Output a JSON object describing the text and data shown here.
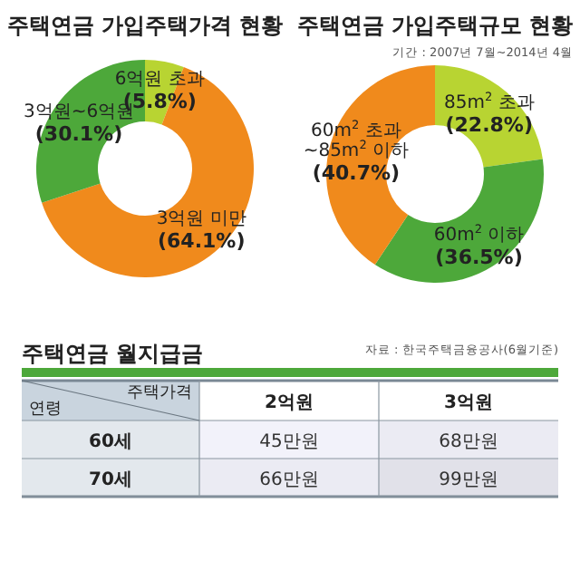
{
  "chart_data": [
    {
      "type": "donut",
      "title": "주택연금 가입주택가격 현황",
      "categories": [
        "6억원 초과",
        "3억원 미만",
        "3억원~6억원"
      ],
      "values": [
        5.8,
        64.1,
        30.1
      ],
      "colors": [
        "#b8d432",
        "#f08a1c",
        "#4da83a"
      ],
      "value_labels": [
        "(5.8%)",
        "(64.1%)",
        "(30.1%)"
      ]
    },
    {
      "type": "donut",
      "title": "주택연금 가입주택규모 현황",
      "subtitle": "기간 : 2007년 7월~2014년 4월",
      "categories": [
        "85m$^{2}$ 초과",
        "60m$^{2}$ 이하",
        "60m$^{2}$ 초과 ~85m$^{2}$ 이하"
      ],
      "values": [
        22.8,
        36.5,
        40.7
      ],
      "colors": [
        "#b8d432",
        "#4da83a",
        "#f08a1c"
      ],
      "value_labels": [
        "(22.8%)",
        "(36.5%)",
        "(40.7%)"
      ]
    },
    {
      "type": "heatmap",
      "title": "주택연금 월지급금",
      "xlabel": "주택가격",
      "ylabel": "연령",
      "categories": [
        "2억원",
        "3억원"
      ],
      "y_categories": [
        "60세",
        "70세"
      ],
      "cells": [
        [
          45,
          68
        ],
        [
          66,
          99
        ]
      ],
      "cell_labels": [
        [
          "45만원",
          "68만원"
        ],
        [
          "66만원",
          "99만원"
        ]
      ],
      "annotations": [
        "자료 : 한국주택금융공사(6월기준)"
      ]
    }
  ]
}
